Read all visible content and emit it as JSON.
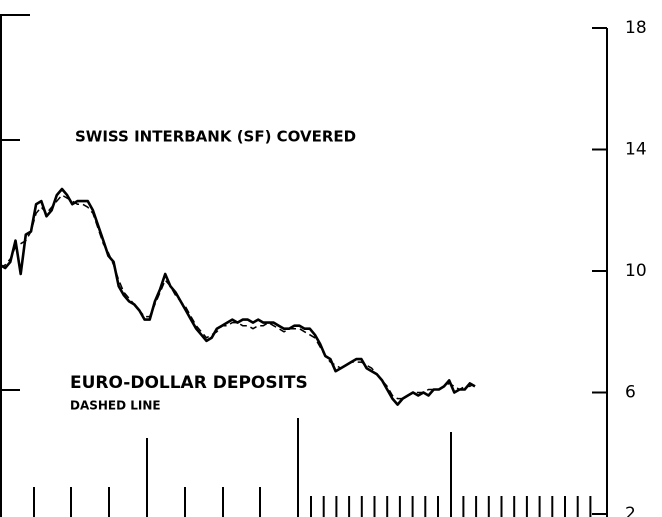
{
  "chart_data": {
    "type": "line",
    "annotations": [
      "SWISS INTERBANK (SF) COVERED",
      "EURO-DOLLAR DEPOSITS",
      "DASHED LINE"
    ],
    "series": [
      {
        "name": "SWISS INTERBANK (SF) COVERED",
        "color": "#000000",
        "dash": false,
        "values": [
          10.2,
          10.1,
          10.3,
          11.0,
          9.9,
          11.2,
          11.3,
          12.2,
          12.3,
          11.8,
          12.0,
          12.5,
          12.7,
          12.5,
          12.2,
          12.3,
          12.3,
          12.3,
          12.0,
          11.5,
          11.0,
          10.5,
          10.3,
          9.5,
          9.2,
          9.0,
          8.9,
          8.7,
          8.4,
          8.4,
          9.0,
          9.4,
          9.9,
          9.5,
          9.3,
          9.0,
          8.7,
          8.4,
          8.1,
          7.9,
          7.7,
          7.8,
          8.1,
          8.2,
          8.3,
          8.4,
          8.3,
          8.4,
          8.4,
          8.3,
          8.4,
          8.3,
          8.3,
          8.3,
          8.2,
          8.1,
          8.1,
          8.2,
          8.2,
          8.1,
          8.1,
          7.9,
          7.6,
          7.2,
          7.1,
          6.7,
          6.8,
          6.9,
          7.0,
          7.1,
          7.1,
          6.8,
          6.7,
          6.6,
          6.4,
          6.1,
          5.8,
          5.6,
          5.8,
          5.9,
          6.0,
          5.9,
          6.0,
          5.9,
          6.1,
          6.1,
          6.2,
          6.4,
          6.0,
          6.1,
          6.1,
          6.3,
          6.2
        ]
      },
      {
        "name": "EURO-DOLLAR DEPOSITS",
        "color": "#000000",
        "dash": true,
        "values": [
          10.1,
          10.2,
          10.4,
          10.8,
          10.9,
          11.0,
          11.3,
          11.9,
          12.1,
          11.9,
          12.1,
          12.3,
          12.5,
          12.4,
          12.3,
          12.2,
          12.2,
          12.1,
          11.9,
          11.4,
          10.9,
          10.6,
          10.2,
          9.7,
          9.3,
          9.1,
          8.9,
          8.7,
          8.5,
          8.5,
          8.9,
          9.3,
          9.7,
          9.5,
          9.2,
          9.0,
          8.8,
          8.5,
          8.2,
          8.0,
          7.8,
          7.9,
          8.0,
          8.2,
          8.2,
          8.3,
          8.3,
          8.2,
          8.2,
          8.1,
          8.2,
          8.2,
          8.3,
          8.2,
          8.1,
          8.0,
          8.1,
          8.1,
          8.1,
          8.0,
          7.9,
          7.8,
          7.5,
          7.2,
          7.0,
          6.9,
          6.8,
          6.9,
          7.0,
          7.0,
          7.0,
          6.9,
          6.8,
          6.6,
          6.4,
          6.2,
          5.9,
          5.8,
          5.8,
          5.9,
          6.0,
          6.0,
          6.0,
          6.1,
          6.1,
          6.1,
          6.2,
          6.3,
          6.2,
          6.1,
          6.2,
          6.2,
          6.3
        ]
      }
    ],
    "ylim": [
      2,
      18
    ],
    "yticks": [
      2,
      6,
      10,
      14,
      18
    ],
    "axis_side": "right"
  }
}
